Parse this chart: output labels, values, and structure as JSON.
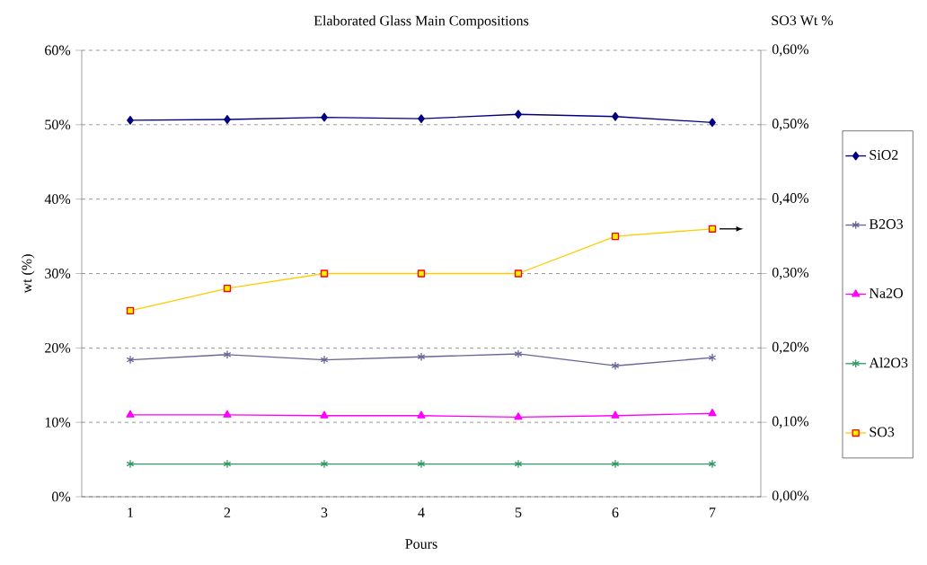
{
  "chart_data": {
    "type": "line",
    "title": "Elaborated Glass Main Compositions",
    "xlabel": "Pours",
    "ylabel": "wt (%)",
    "y2label": "SO3 Wt %",
    "categories": [
      "1",
      "2",
      "3",
      "4",
      "5",
      "6",
      "7"
    ],
    "series": [
      {
        "name": "SiO2",
        "color": "#000080",
        "marker": "diamond",
        "values": [
          50.6,
          50.7,
          51.0,
          50.8,
          51.4,
          51.1,
          50.3
        ]
      },
      {
        "name": "B2O3",
        "color": "#666699",
        "marker": "cross",
        "values": [
          18.4,
          19.1,
          18.4,
          18.8,
          19.2,
          17.6,
          18.7
        ]
      },
      {
        "name": "Na2O",
        "color": "#ff00ff",
        "marker": "triangle",
        "values": [
          11.0,
          11.0,
          10.9,
          10.9,
          10.7,
          10.9,
          11.2
        ]
      },
      {
        "name": "Al2O3",
        "color": "#339966",
        "marker": "cross",
        "values": [
          4.4,
          4.4,
          4.4,
          4.4,
          4.4,
          4.4,
          4.4
        ]
      },
      {
        "name": "SO3",
        "color": "#ffcc00",
        "marker": "square",
        "axis": "y2",
        "values": [
          0.25,
          0.28,
          0.3,
          0.3,
          0.3,
          0.35,
          0.36
        ]
      }
    ],
    "ylim": [
      0,
      60
    ],
    "yticks": [
      {
        "value": 0,
        "label": "0%"
      },
      {
        "value": 10,
        "label": "10%"
      },
      {
        "value": 20,
        "label": "20%"
      },
      {
        "value": 30,
        "label": "30%"
      },
      {
        "value": 40,
        "label": "40%"
      },
      {
        "value": 50,
        "label": "50%"
      },
      {
        "value": 60,
        "label": "60%"
      }
    ],
    "y2lim": [
      0,
      0.6
    ],
    "y2ticks": [
      {
        "value": 0,
        "label": "0,00%"
      },
      {
        "value": 0.1,
        "label": "0,10%"
      },
      {
        "value": 0.2,
        "label": "0,20%"
      },
      {
        "value": 0.3,
        "label": "0,30%"
      },
      {
        "value": 0.4,
        "label": "0,40%"
      },
      {
        "value": 0.5,
        "label": "0,50%"
      },
      {
        "value": 0.6,
        "label": "0,60%"
      }
    ],
    "grid": "y",
    "legend": "right",
    "line_style": "solid"
  }
}
